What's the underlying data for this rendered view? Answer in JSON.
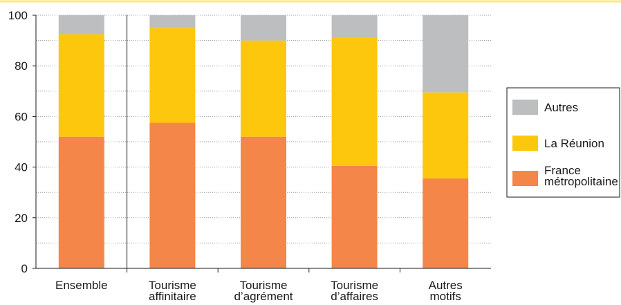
{
  "colors": {
    "top_rule": "#ffe97a",
    "axis": "#1a1a1a",
    "grid": "#9a9a9a",
    "autres": "#bdbec0",
    "reunion": "#fdc70e",
    "france": "#f4864a"
  },
  "chart_data": {
    "type": "bar",
    "stacked": true,
    "categories": [
      [
        "Ensemble"
      ],
      [
        "Tourisme",
        "affinitaire"
      ],
      [
        "Tourisme",
        "d’agrément"
      ],
      [
        "Tourisme",
        "d’affaires"
      ],
      [
        "Autres",
        "motifs"
      ]
    ],
    "series": [
      {
        "name": "France métropolitaine",
        "legend_lines": [
          "France",
          "métropolitaine"
        ],
        "color_key": "france",
        "values": [
          52,
          57.5,
          52,
          40.5,
          35.5
        ]
      },
      {
        "name": "La Réunion",
        "legend_lines": [
          "La Réunion"
        ],
        "color_key": "reunion",
        "values": [
          40.5,
          37.5,
          38,
          50.5,
          34
        ]
      },
      {
        "name": "Autres",
        "legend_lines": [
          "Autres"
        ],
        "color_key": "autres",
        "values": [
          7.5,
          5,
          10,
          9,
          30.5
        ]
      }
    ],
    "ylim": [
      0,
      100
    ],
    "yticks": [
      0,
      20,
      40,
      60,
      80,
      100
    ],
    "grid": "dotted horizontal",
    "separator_after_category": 0,
    "legend_position": "right",
    "title": "",
    "xlabel": "",
    "ylabel": ""
  }
}
